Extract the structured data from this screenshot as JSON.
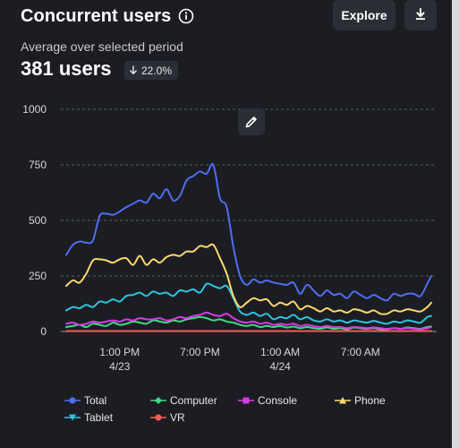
{
  "header": {
    "title": "Concurrent users",
    "explore_label": "Explore"
  },
  "summary": {
    "subtitle": "Average over selected period",
    "value": "381 users",
    "change": "22.0%",
    "change_direction": "down"
  },
  "colors": {
    "Total": "#4f6ef2",
    "Computer": "#3ddc84",
    "Console": "#d63ce6",
    "Phone": "#ffd86b",
    "Tablet": "#2ec4de",
    "VR": "#f25c54"
  },
  "chart_data": {
    "type": "line",
    "y_ticks": [
      "1000",
      "750",
      "500",
      "250",
      "0"
    ],
    "ylim": [
      0,
      1000
    ],
    "grid": true,
    "legend_position": "bottom",
    "x_ticks": [
      {
        "t": 7,
        "line1": "1:00 PM",
        "line2": "4/23"
      },
      {
        "t": 13,
        "line1": "7:00 PM",
        "line2": ""
      },
      {
        "t": 19,
        "line1": "1:00 AM",
        "line2": "4/24"
      },
      {
        "t": 25,
        "line1": "7:00 AM",
        "line2": ""
      }
    ],
    "x_range_hours": [
      3,
      30.3
    ],
    "series": [
      {
        "name": "Total",
        "x": [
          3,
          3.5,
          4,
          4.5,
          5,
          5.5,
          6,
          6.5,
          7,
          7.5,
          8,
          8.5,
          9,
          9.5,
          10,
          10.5,
          11,
          11.5,
          12,
          12.5,
          13,
          13.5,
          14,
          14.5,
          15,
          15.5,
          16,
          16.5,
          17,
          17.5,
          18,
          18.5,
          19,
          19.5,
          20,
          20.5,
          21,
          21.5,
          22,
          22.5,
          23,
          23.5,
          24,
          24.5,
          25,
          25.5,
          26,
          26.5,
          27,
          27.5,
          28,
          28.5,
          29,
          29.5,
          30,
          30.3
        ],
        "y": [
          345,
          390,
          405,
          400,
          410,
          520,
          530,
          525,
          540,
          560,
          575,
          590,
          580,
          620,
          600,
          640,
          590,
          610,
          680,
          700,
          720,
          710,
          750,
          600,
          560,
          380,
          250,
          210,
          235,
          220,
          230,
          220,
          215,
          210,
          220,
          170,
          210,
          185,
          160,
          185,
          165,
          170,
          150,
          180,
          165,
          150,
          165,
          150,
          140,
          170,
          160,
          170,
          170,
          160,
          215,
          250
        ]
      },
      {
        "name": "Phone",
        "x": [
          3,
          3.5,
          4,
          4.5,
          5,
          5.5,
          6,
          6.5,
          7,
          7.5,
          8,
          8.5,
          9,
          9.5,
          10,
          10.5,
          11,
          11.5,
          12,
          12.5,
          13,
          13.5,
          14,
          14.5,
          15,
          15.5,
          16,
          16.5,
          17,
          17.5,
          18,
          18.5,
          19,
          19.5,
          20,
          20.5,
          21,
          21.5,
          22,
          22.5,
          23,
          23.5,
          24,
          24.5,
          25,
          25.5,
          26,
          26.5,
          27,
          27.5,
          28,
          28.5,
          29,
          29.5,
          30,
          30.3
        ],
        "y": [
          205,
          230,
          220,
          260,
          320,
          325,
          320,
          310,
          325,
          330,
          300,
          340,
          300,
          325,
          310,
          335,
          345,
          340,
          360,
          360,
          385,
          380,
          390,
          330,
          260,
          160,
          110,
          130,
          150,
          140,
          145,
          115,
          130,
          120,
          135,
          100,
          115,
          105,
          90,
          105,
          90,
          95,
          85,
          100,
          95,
          85,
          95,
          80,
          80,
          95,
          90,
          100,
          95,
          90,
          110,
          130
        ]
      },
      {
        "name": "Tablet",
        "x": [
          3,
          3.5,
          4,
          4.5,
          5,
          5.5,
          6,
          6.5,
          7,
          7.5,
          8,
          8.5,
          9,
          9.5,
          10,
          10.5,
          11,
          11.5,
          12,
          12.5,
          13,
          13.5,
          14,
          14.5,
          15,
          15.5,
          16,
          16.5,
          17,
          17.5,
          18,
          18.5,
          19,
          19.5,
          20,
          20.5,
          21,
          21.5,
          22,
          22.5,
          23,
          23.5,
          24,
          24.5,
          25,
          25.5,
          26,
          26.5,
          27,
          27.5,
          28,
          28.5,
          29,
          29.5,
          30,
          30.3
        ],
        "y": [
          95,
          110,
          105,
          120,
          110,
          135,
          130,
          145,
          135,
          160,
          165,
          175,
          160,
          180,
          170,
          175,
          160,
          185,
          180,
          190,
          175,
          215,
          205,
          195,
          205,
          150,
          90,
          75,
          85,
          70,
          80,
          55,
          65,
          60,
          75,
          55,
          65,
          50,
          45,
          55,
          45,
          50,
          40,
          50,
          45,
          40,
          48,
          40,
          35,
          45,
          40,
          50,
          45,
          40,
          65,
          70
        ]
      },
      {
        "name": "Console",
        "x": [
          3,
          3.5,
          4,
          4.5,
          5,
          5.5,
          6,
          6.5,
          7,
          7.5,
          8,
          8.5,
          9,
          9.5,
          10,
          10.5,
          11,
          11.5,
          12,
          12.5,
          13,
          13.5,
          14,
          14.5,
          15,
          15.5,
          16,
          16.5,
          17,
          17.5,
          18,
          18.5,
          19,
          19.5,
          20,
          20.5,
          21,
          21.5,
          22,
          22.5,
          23,
          23.5,
          24,
          24.5,
          25,
          25.5,
          26,
          26.5,
          27,
          27.5,
          28,
          28.5,
          29,
          29.5,
          30,
          30.3
        ],
        "y": [
          35,
          40,
          30,
          35,
          45,
          40,
          45,
          50,
          45,
          55,
          50,
          60,
          55,
          55,
          60,
          50,
          55,
          65,
          60,
          70,
          75,
          85,
          75,
          70,
          80,
          60,
          45,
          40,
          45,
          35,
          40,
          30,
          35,
          30,
          35,
          25,
          30,
          25,
          20,
          25,
          20,
          20,
          15,
          20,
          18,
          15,
          18,
          15,
          12,
          15,
          12,
          15,
          12,
          10,
          15,
          20
        ]
      },
      {
        "name": "Computer",
        "x": [
          3,
          3.5,
          4,
          4.5,
          5,
          5.5,
          6,
          6.5,
          7,
          7.5,
          8,
          8.5,
          9,
          9.5,
          10,
          10.5,
          11,
          11.5,
          12,
          12.5,
          13,
          13.5,
          14,
          14.5,
          15,
          15.5,
          16,
          16.5,
          17,
          17.5,
          18,
          18.5,
          19,
          19.5,
          20,
          20.5,
          21,
          21.5,
          22,
          22.5,
          23,
          23.5,
          24,
          24.5,
          25,
          25.5,
          26,
          26.5,
          27,
          27.5,
          28,
          28.5,
          29,
          29.5,
          30,
          30.3
        ],
        "y": [
          20,
          25,
          30,
          20,
          35,
          30,
          25,
          40,
          30,
          35,
          45,
          40,
          35,
          50,
          45,
          40,
          50,
          45,
          55,
          60,
          65,
          60,
          50,
          55,
          45,
          40,
          30,
          25,
          30,
          20,
          25,
          20,
          25,
          18,
          22,
          15,
          20,
          15,
          12,
          18,
          12,
          15,
          10,
          18,
          15,
          12,
          15,
          10,
          10,
          15,
          12,
          18,
          15,
          12,
          20,
          22
        ]
      },
      {
        "name": "VR",
        "x": [
          3,
          30.3
        ],
        "y": [
          2,
          2
        ]
      }
    ]
  }
}
